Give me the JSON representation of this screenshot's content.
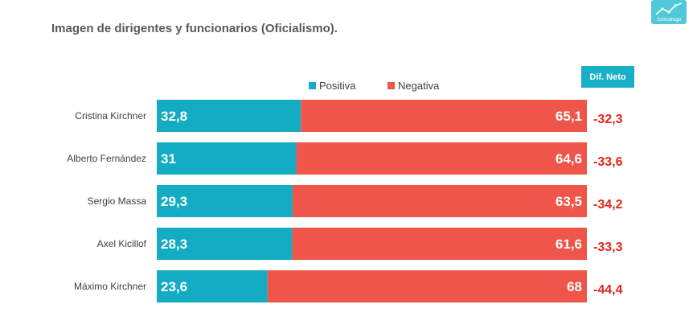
{
  "title": "Imagen de dirigentes y funcionarios (Oficialismo).",
  "logo_text": "Solmoirago",
  "colors": {
    "positiva": "#14acc3",
    "negativa": "#ef5549",
    "diff": "#e1261c",
    "header_bg": "#17b0c6",
    "logo_bg": "#4fc8d8"
  },
  "chart_data": {
    "type": "bar",
    "orientation": "horizontal",
    "stacked": true,
    "categories": [
      "Cristina Kirchner",
      "Alberto Fernández",
      "Sergio Massa",
      "Axel Kicillof",
      "Máximo Kirchner"
    ],
    "series": [
      {
        "name": "Positiva",
        "values": [
          32.8,
          31,
          29.3,
          28.3,
          23.6
        ],
        "labels": [
          "32,8",
          "31",
          "29,3",
          "28,3",
          "23,6"
        ]
      },
      {
        "name": "Negativa",
        "values": [
          65.1,
          64.6,
          63.5,
          61.6,
          68
        ],
        "labels": [
          "65,1",
          "64,6",
          "63,5",
          "61,6",
          "68"
        ]
      }
    ],
    "diff_header": "Dif. Neto",
    "diff_values": [
      -32.3,
      -33.6,
      -34.2,
      -33.3,
      -44.4
    ],
    "diff_labels": [
      "-32,3",
      "-33,6",
      "-34,2",
      "-33,3",
      "-44,4"
    ],
    "legend_position": "top",
    "grid": false
  }
}
